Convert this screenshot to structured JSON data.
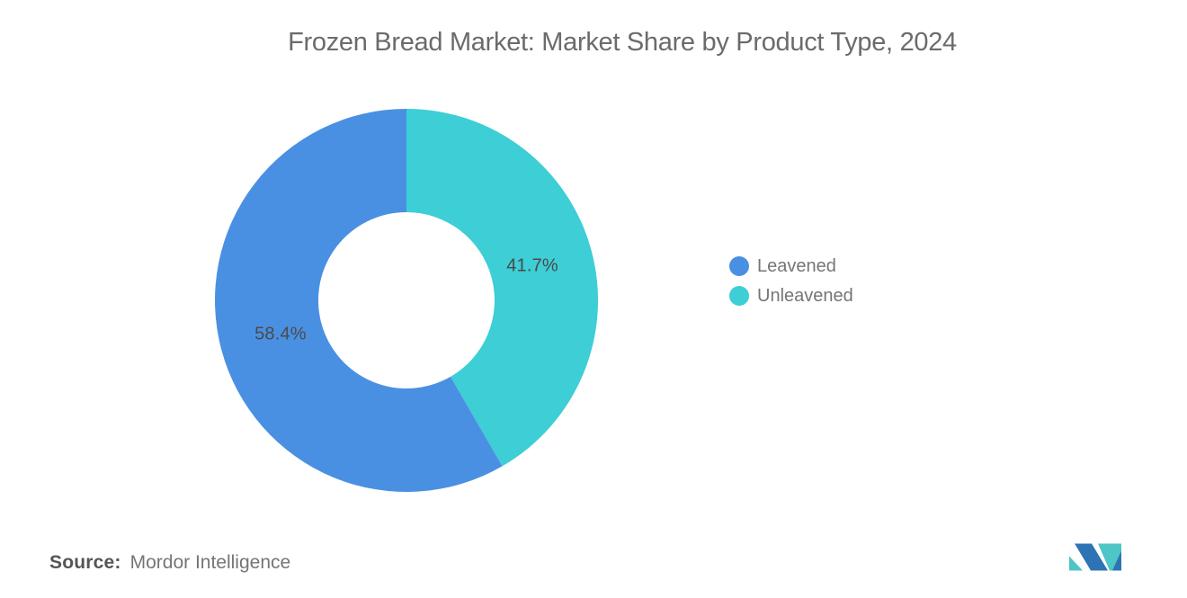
{
  "title": "Frozen Bread Market: Market Share by Product Type, 2024",
  "chart_data": {
    "type": "pie",
    "subtype": "donut",
    "title": "Frozen Bread Market: Market Share by Product Type, 2024",
    "categories": [
      "Leavened",
      "Unleavened"
    ],
    "values": [
      58.4,
      41.7
    ],
    "labels": [
      "58.4%",
      "41.7%"
    ],
    "colors": [
      "#4a90e2",
      "#3dced6"
    ],
    "draw_sequence": [
      1,
      0
    ],
    "start_angle_deg": 0,
    "legend_position": "right",
    "legend_entries": [
      "Leavened",
      "Unleavened"
    ]
  },
  "legend": {
    "items": [
      {
        "label": "Leavened",
        "color": "#4a90e2"
      },
      {
        "label": "Unleavened",
        "color": "#3dced6"
      }
    ]
  },
  "source": {
    "prefix": "Source:",
    "name": "Mordor Intelligence"
  },
  "logo": {
    "blue": "#2e74b5",
    "teal": "#4ec5c6"
  }
}
